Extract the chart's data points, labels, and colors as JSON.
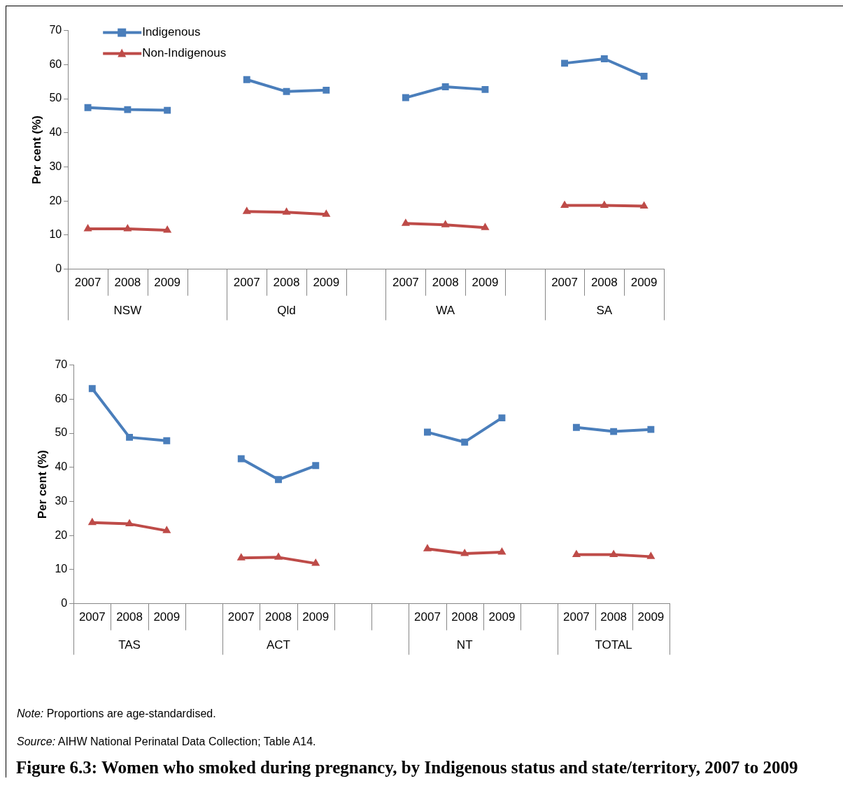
{
  "chart_data": [
    {
      "type": "line",
      "ylabel": "Per cent (%)",
      "categories": [
        "2007",
        "2008",
        "2009",
        null,
        "2007",
        "2008",
        "2009",
        null,
        "2007",
        "2008",
        "2009",
        null,
        "2007",
        "2008",
        "2009"
      ],
      "annotations": [
        "NSW",
        "Qld",
        "WA",
        "SA"
      ],
      "ylim": [
        0,
        70
      ],
      "yticks": [
        0,
        10,
        20,
        30,
        40,
        50,
        60,
        70
      ],
      "grid": false,
      "legend": "top left",
      "series": [
        {
          "name": "Indigenous",
          "color": "#4a7ebb",
          "marker": "square",
          "values": [
            47.4,
            46.8,
            46.6,
            null,
            55.6,
            52.1,
            52.5,
            null,
            50.3,
            53.5,
            52.7,
            null,
            60.4,
            61.7,
            56.6
          ]
        },
        {
          "name": "Non-Indigenous",
          "color": "#be4b48",
          "marker": "triangle",
          "values": [
            11.8,
            11.8,
            11.4,
            null,
            16.9,
            16.7,
            16.1,
            null,
            13.4,
            13.0,
            12.2,
            null,
            18.7,
            18.7,
            18.5
          ]
        }
      ]
    },
    {
      "type": "line",
      "ylabel": "Per cent (%)",
      "title": "Figure 6.3: Women who smoked during pregnancy, by Indigenous status and state/territory, 2007 to 2009",
      "categories": [
        "2007",
        "2008",
        "2009",
        null,
        "2007",
        "2008",
        "2009",
        null,
        null,
        "2007",
        "2008",
        "2009",
        null,
        "2007",
        "2008",
        "2009"
      ],
      "annotations": [
        "TAS",
        "ACT",
        "NT",
        "TOTAL",
        "Note: Proportions are age-standardised.",
        "Source: AIHW National Perinatal Data Collection; Table A14."
      ],
      "ylim": [
        0,
        70
      ],
      "yticks": [
        0,
        10,
        20,
        30,
        40,
        50,
        60,
        70
      ],
      "grid": false,
      "legend": false,
      "series": [
        {
          "color": "#4a7ebb",
          "marker": "square",
          "values": [
            63.1,
            48.8,
            47.8,
            null,
            42.5,
            36.4,
            40.5,
            null,
            null,
            50.3,
            47.4,
            54.5,
            null,
            51.7,
            50.5,
            51.1
          ]
        },
        {
          "color": "#be4b48",
          "marker": "triangle",
          "values": [
            23.8,
            23.4,
            21.4,
            null,
            13.4,
            13.6,
            11.8,
            null,
            null,
            16.1,
            14.7,
            15.1,
            null,
            14.4,
            14.4,
            13.8
          ]
        }
      ]
    }
  ]
}
